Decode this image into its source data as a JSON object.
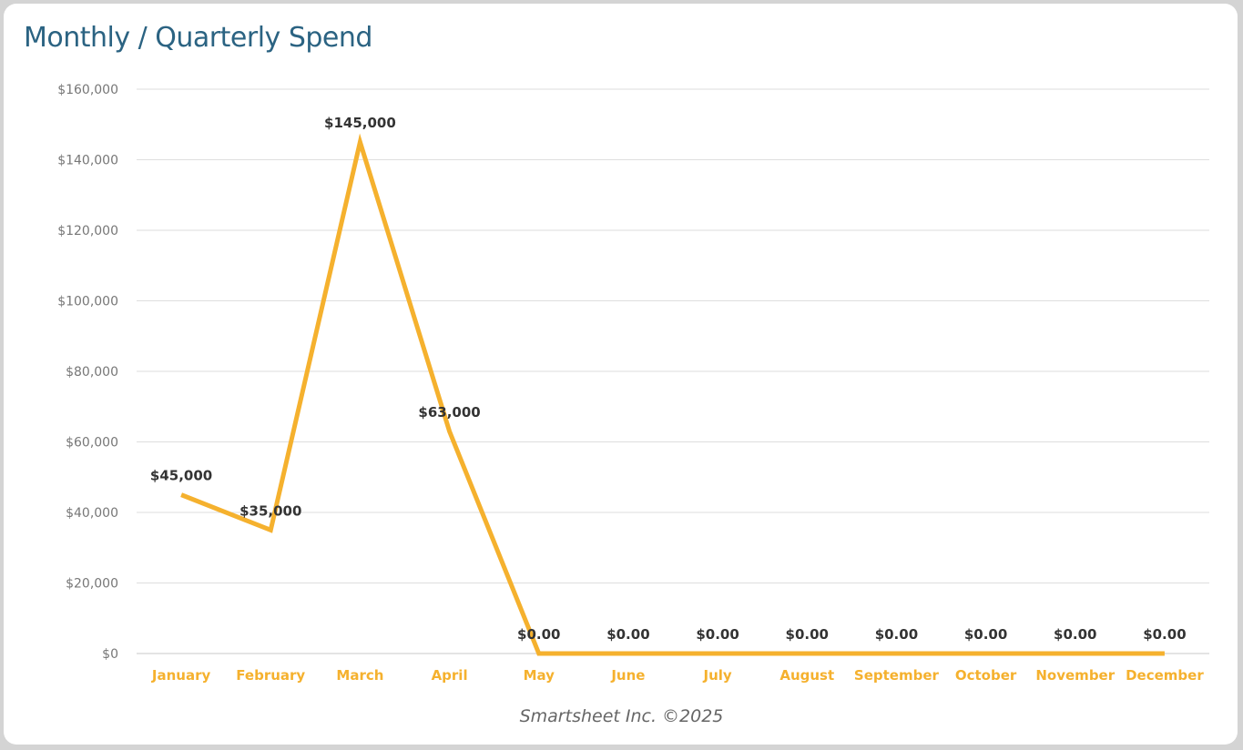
{
  "chart_data": {
    "type": "line",
    "title": "Monthly / Quarterly Spend",
    "categories": [
      "January",
      "February",
      "March",
      "April",
      "May",
      "June",
      "July",
      "August",
      "September",
      "October",
      "November",
      "December"
    ],
    "values": [
      45000,
      35000,
      145000,
      63000,
      0,
      0,
      0,
      0,
      0,
      0,
      0,
      0
    ],
    "data_labels": [
      "$45,000",
      "$35,000",
      "$145,000",
      "$63,000",
      "$0.00",
      "$0.00",
      "$0.00",
      "$0.00",
      "$0.00",
      "$0.00",
      "$0.00",
      "$0.00"
    ],
    "ylim": [
      0,
      160000
    ],
    "yticks": [
      0,
      20000,
      40000,
      60000,
      80000,
      100000,
      120000,
      140000,
      160000
    ],
    "ytick_labels": [
      "$0",
      "$20,000",
      "$40,000",
      "$60,000",
      "$80,000",
      "$100,000",
      "$120,000",
      "$140,000",
      "$160,000"
    ],
    "grid": true,
    "line_color": "#f5b12e",
    "title_color": "#2b6382"
  },
  "footer": "Smartsheet Inc. ©2025"
}
